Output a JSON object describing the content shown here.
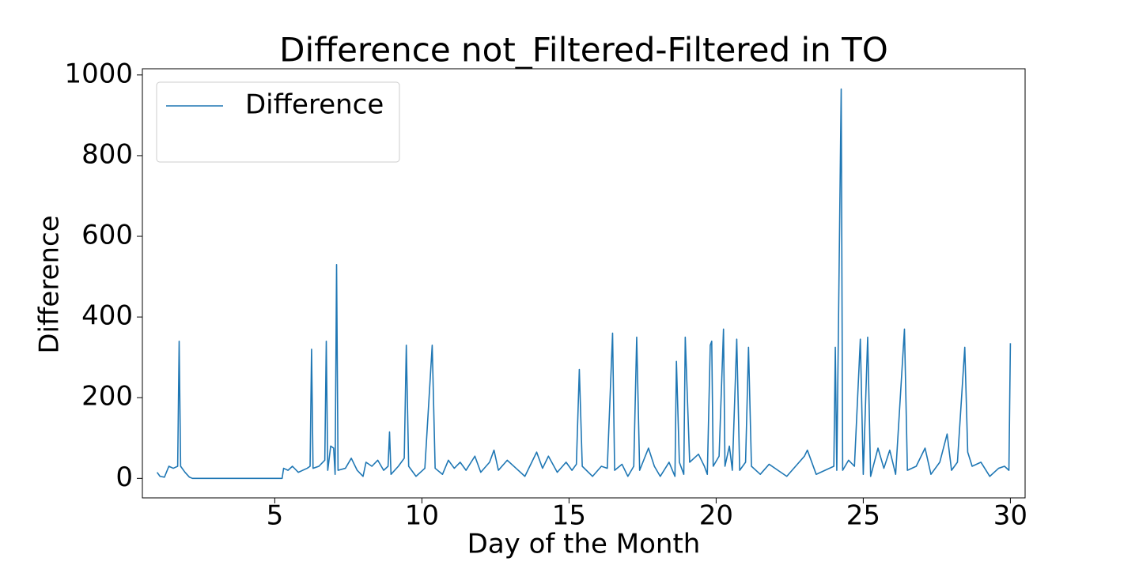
{
  "chart_data": {
    "type": "line",
    "title": "Difference not_Filtered-Filtered in TO",
    "x_label": "Day of the Month",
    "y_label": "Difference",
    "legend": "upper left",
    "x": [
      1.0,
      1.1,
      1.25,
      1.4,
      1.55,
      1.7,
      1.75,
      1.8,
      1.95,
      2.1,
      2.2,
      5.25,
      5.3,
      5.45,
      5.6,
      5.8,
      6.1,
      6.2,
      6.25,
      6.3,
      6.5,
      6.7,
      6.75,
      6.8,
      6.9,
      7.0,
      7.05,
      7.1,
      7.15,
      7.4,
      7.6,
      7.8,
      8.0,
      8.1,
      8.3,
      8.5,
      8.7,
      8.85,
      8.9,
      8.95,
      9.2,
      9.4,
      9.47,
      9.55,
      9.8,
      10.1,
      10.35,
      10.45,
      10.7,
      10.9,
      11.1,
      11.3,
      11.5,
      11.8,
      12.0,
      12.3,
      12.45,
      12.6,
      12.9,
      13.2,
      13.5,
      13.9,
      14.1,
      14.3,
      14.6,
      14.9,
      15.1,
      15.25,
      15.35,
      15.45,
      15.8,
      16.1,
      16.3,
      16.48,
      16.55,
      16.8,
      17.0,
      17.2,
      17.3,
      17.4,
      17.7,
      17.9,
      18.1,
      18.4,
      18.6,
      18.65,
      18.75,
      18.9,
      18.95,
      19.1,
      19.4,
      19.6,
      19.7,
      19.8,
      19.85,
      19.9,
      20.1,
      20.25,
      20.3,
      20.45,
      20.55,
      20.7,
      20.8,
      21.0,
      21.1,
      21.2,
      21.5,
      21.8,
      22.1,
      22.4,
      22.7,
      23.0,
      23.1,
      23.4,
      23.7,
      24.0,
      24.05,
      24.1,
      24.25,
      24.3,
      24.5,
      24.7,
      24.9,
      25.0,
      25.15,
      25.25,
      25.5,
      25.7,
      25.9,
      26.1,
      26.4,
      26.5,
      26.8,
      27.1,
      27.3,
      27.6,
      27.85,
      28.0,
      28.2,
      28.45,
      28.55,
      28.7,
      29.0,
      29.3,
      29.6,
      29.8,
      29.95,
      30.0
    ],
    "series": [
      {
        "name": "Difference",
        "color": "#1f77b4",
        "values": [
          15,
          5,
          3,
          30,
          25,
          30,
          340,
          30,
          15,
          3,
          0,
          0,
          25,
          20,
          30,
          15,
          25,
          30,
          320,
          25,
          30,
          45,
          340,
          20,
          80,
          75,
          10,
          530,
          20,
          25,
          50,
          20,
          5,
          40,
          30,
          45,
          20,
          30,
          115,
          10,
          30,
          50,
          330,
          30,
          5,
          25,
          330,
          25,
          10,
          45,
          25,
          40,
          20,
          55,
          15,
          40,
          70,
          20,
          45,
          25,
          5,
          65,
          25,
          55,
          15,
          40,
          20,
          35,
          270,
          30,
          5,
          30,
          25,
          360,
          20,
          35,
          5,
          30,
          350,
          20,
          75,
          30,
          5,
          40,
          5,
          290,
          40,
          10,
          350,
          40,
          60,
          30,
          10,
          330,
          340,
          30,
          55,
          370,
          30,
          80,
          20,
          345,
          20,
          40,
          325,
          30,
          10,
          35,
          20,
          5,
          30,
          55,
          70,
          10,
          20,
          30,
          325,
          20,
          965,
          20,
          45,
          30,
          345,
          10,
          350,
          5,
          75,
          25,
          70,
          10,
          370,
          20,
          30,
          75,
          10,
          40,
          110,
          20,
          40,
          325,
          65,
          30,
          40,
          5,
          25,
          30,
          20,
          335
        ]
      }
    ],
    "xlim": [
      0.5,
      30.5
    ],
    "xticks": [
      5,
      10,
      15,
      20,
      25,
      30
    ],
    "ylim": [
      -48.35,
      1015.35
    ],
    "yticks": [
      0,
      200,
      400,
      600,
      800,
      1000
    ]
  }
}
